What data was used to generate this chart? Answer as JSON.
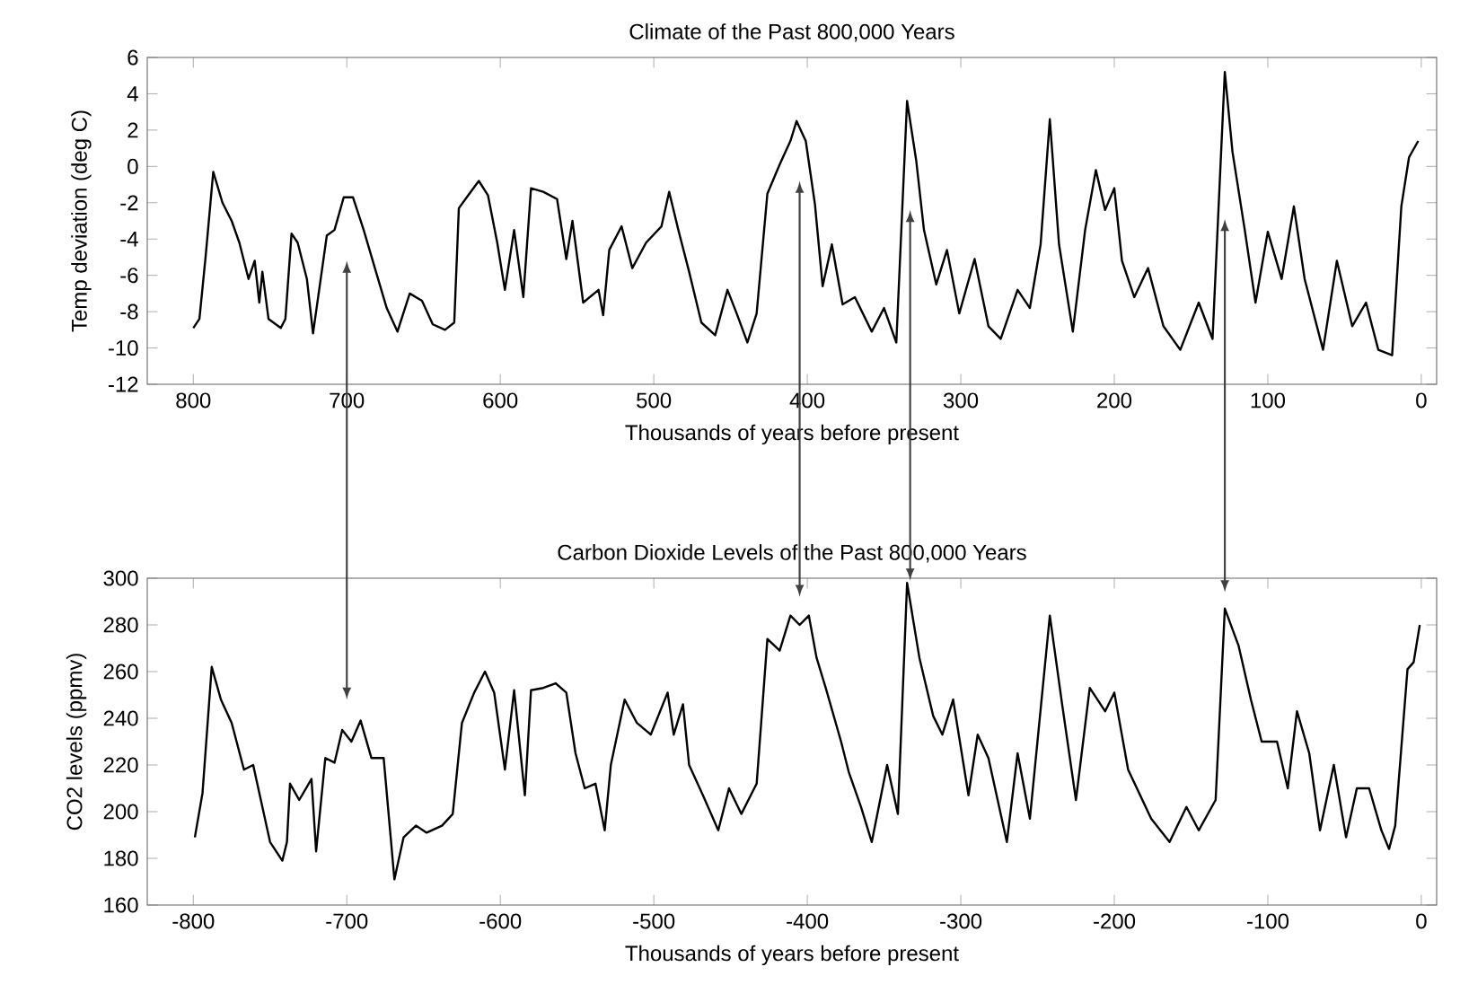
{
  "chart_data": [
    {
      "type": "line",
      "title": "Climate of the Past 800,000 Years",
      "xlabel": "Thousands of years before present",
      "ylabel": "Temp deviation (deg C)",
      "xlim": [
        830,
        -10
      ],
      "ylim": [
        -12,
        6
      ],
      "xticks": [
        800,
        700,
        600,
        500,
        400,
        300,
        200,
        100,
        0
      ],
      "yticks": [
        -12,
        -10,
        -8,
        -6,
        -4,
        -2,
        0,
        2,
        4,
        6
      ],
      "color": "#000000",
      "x": [
        800,
        796,
        792,
        787,
        781,
        775,
        770,
        764,
        760,
        757,
        755,
        751,
        743,
        740,
        736,
        732,
        726,
        722,
        713,
        708,
        702,
        696,
        689,
        681,
        674,
        667,
        659,
        651,
        644,
        636,
        630,
        627,
        621,
        614,
        608,
        602,
        597,
        591,
        585,
        580,
        572,
        563,
        557,
        553,
        546,
        536,
        533,
        529,
        521,
        514,
        505,
        495,
        490,
        484,
        477,
        469,
        460,
        452,
        446,
        439,
        433,
        426,
        418,
        411,
        407,
        401,
        395,
        390,
        384,
        377,
        369,
        358,
        350,
        342,
        335,
        329,
        324,
        316,
        309,
        301,
        291,
        282,
        274,
        263,
        255,
        248,
        242,
        236,
        227,
        219,
        212,
        206,
        200,
        195,
        187,
        178,
        168,
        157,
        145,
        136,
        128,
        123,
        115,
        108,
        100,
        91,
        83,
        76,
        64,
        55,
        45,
        36,
        28,
        19,
        13,
        8,
        2
      ],
      "values": [
        -8.9,
        -8.4,
        -5,
        -0.3,
        -2,
        -3,
        -4.2,
        -6.2,
        -5.2,
        -7.5,
        -5.8,
        -8.4,
        -8.9,
        -8.4,
        -3.7,
        -4.2,
        -6.2,
        -9.2,
        -3.8,
        -3.5,
        -1.7,
        -1.7,
        -3.5,
        -5.8,
        -7.8,
        -9.1,
        -7,
        -7.4,
        -8.7,
        -9,
        -8.6,
        -2.3,
        -1.6,
        -0.8,
        -1.6,
        -4.2,
        -6.8,
        -3.5,
        -7.2,
        -1.2,
        -1.4,
        -1.8,
        -5.1,
        -3,
        -7.5,
        -6.8,
        -8.2,
        -4.6,
        -3.3,
        -5.6,
        -4.2,
        -3.3,
        -1.4,
        -3.5,
        -5.8,
        -8.6,
        -9.3,
        -6.8,
        -8.1,
        -9.7,
        -8.1,
        -1.5,
        0.1,
        1.4,
        2.5,
        1.4,
        -2.1,
        -6.6,
        -4.3,
        -7.6,
        -7.2,
        -9.1,
        -7.8,
        -9.7,
        3.6,
        0.3,
        -3.5,
        -6.5,
        -4.6,
        -8.1,
        -5.1,
        -8.8,
        -9.5,
        -6.8,
        -7.8,
        -4.3,
        2.6,
        -4.3,
        -9.1,
        -3.5,
        -0.2,
        -2.4,
        -1.2,
        -5.2,
        -7.2,
        -5.6,
        -8.8,
        -10.1,
        -7.5,
        -9.5,
        5.2,
        0.8,
        -3.5,
        -7.5,
        -3.6,
        -6.2,
        -2.2,
        -6.2,
        -10.1,
        -5.2,
        -8.8,
        -7.5,
        -10.1,
        -10.4,
        -2.2,
        0.5,
        1.4
      ]
    },
    {
      "type": "line",
      "title": "Carbon Dioxide Levels of the Past 800,000 Years",
      "xlabel": "Thousands of years before present",
      "ylabel": "CO2 levels (ppmv)",
      "xlim": [
        -830,
        10
      ],
      "ylim": [
        160,
        300
      ],
      "xticks": [
        -800,
        -700,
        -600,
        -500,
        -400,
        -300,
        -200,
        -100,
        0
      ],
      "yticks": [
        160,
        180,
        200,
        220,
        240,
        260,
        280,
        300
      ],
      "color": "#000000",
      "x": [
        -799,
        -794,
        -788,
        -782,
        -775,
        -767,
        -761,
        -756,
        -750,
        -742,
        -739,
        -737,
        -731,
        -723,
        -720,
        -714,
        -708,
        -703,
        -697,
        -691,
        -684,
        -676,
        -669,
        -663,
        -655,
        -648,
        -638,
        -631,
        -625,
        -617,
        -610,
        -604,
        -597,
        -591,
        -584,
        -580,
        -572,
        -564,
        -557,
        -551,
        -545,
        -538,
        -532,
        -528,
        -519,
        -511,
        -502,
        -491,
        -487,
        -481,
        -477,
        -468,
        -458,
        -451,
        -443,
        -433,
        -426,
        -418,
        -411,
        -405,
        -399,
        -394,
        -388,
        -378,
        -373,
        -365,
        -358,
        -348,
        -341,
        -335,
        -327,
        -318,
        -312,
        -305,
        -295,
        -289,
        -282,
        -270,
        -263,
        -255,
        -242,
        -234,
        -225,
        -216,
        -206,
        -200,
        -191,
        -176,
        -164,
        -153,
        -145,
        -134,
        -128,
        -119,
        -111,
        -104,
        -94,
        -87,
        -81,
        -73,
        -66,
        -57,
        -49,
        -42,
        -34,
        -26,
        -21,
        -17,
        -9,
        -5,
        -1
      ],
      "values": [
        189,
        208,
        262,
        248,
        238,
        218,
        220,
        205,
        187,
        179,
        187,
        212,
        205,
        214,
        183,
        223,
        221,
        235,
        230,
        239,
        223,
        223,
        171,
        189,
        194,
        191,
        194,
        199,
        238,
        251,
        260,
        251,
        218,
        252,
        207,
        252,
        253,
        255,
        251,
        225,
        210,
        212,
        192,
        220,
        248,
        238,
        233,
        251,
        233,
        246,
        220,
        207,
        192,
        210,
        199,
        212,
        274,
        269,
        284,
        280,
        284,
        266,
        253,
        230,
        217,
        202,
        187,
        220,
        199,
        298,
        266,
        241,
        233,
        248,
        207,
        233,
        223,
        187,
        225,
        197,
        284,
        246,
        205,
        253,
        243,
        251,
        218,
        197,
        187,
        202,
        192,
        205,
        287,
        271,
        248,
        230,
        230,
        210,
        243,
        225,
        192,
        220,
        189,
        210,
        210,
        192,
        184,
        194,
        261,
        264,
        280
      ]
    }
  ]
}
